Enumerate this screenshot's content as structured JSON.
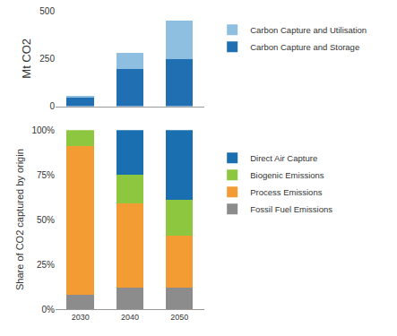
{
  "chart_data": [
    {
      "type": "bar",
      "stacked": true,
      "y_label": "Mt CO2",
      "categories": [
        "2030",
        "2040",
        "2050"
      ],
      "series": [
        {
          "name": "Carbon Capture and Storage",
          "color": "#1f6fb2",
          "values": [
            45,
            195,
            245
          ]
        },
        {
          "name": "Carbon Capture and Utilisation",
          "color": "#8fbfe0",
          "values": [
            5,
            85,
            205
          ]
        }
      ],
      "ylim": [
        0,
        500
      ],
      "yticks": [
        0,
        250,
        500
      ],
      "grid": false,
      "legend": "right",
      "tick_labels": "y"
    },
    {
      "type": "bar",
      "stacked": true,
      "y_label": "Share of CO2 captured by origin",
      "categories": [
        "2030",
        "2040",
        "2050"
      ],
      "series": [
        {
          "name": "Fossil Fuel Emissions",
          "color": "#8c8c8c",
          "values": [
            8,
            12,
            12
          ]
        },
        {
          "name": "Process Emissions",
          "color": "#f39c34",
          "values": [
            83,
            47,
            29
          ]
        },
        {
          "name": "Biogenic Emissions",
          "color": "#8dc63f",
          "values": [
            9,
            16,
            20
          ]
        },
        {
          "name": "Direct Air Capture",
          "color": "#1a6fb0",
          "values": [
            0,
            25,
            39
          ]
        }
      ],
      "ylim": [
        0,
        100
      ],
      "yticks": [
        {
          "value": 0,
          "label": "0%"
        },
        {
          "value": 25,
          "label": "25%"
        },
        {
          "value": 50,
          "label": "50%"
        },
        {
          "value": 75,
          "label": "75%"
        },
        {
          "value": 100,
          "label": "100%"
        }
      ],
      "grid": false,
      "legend": "right"
    }
  ]
}
